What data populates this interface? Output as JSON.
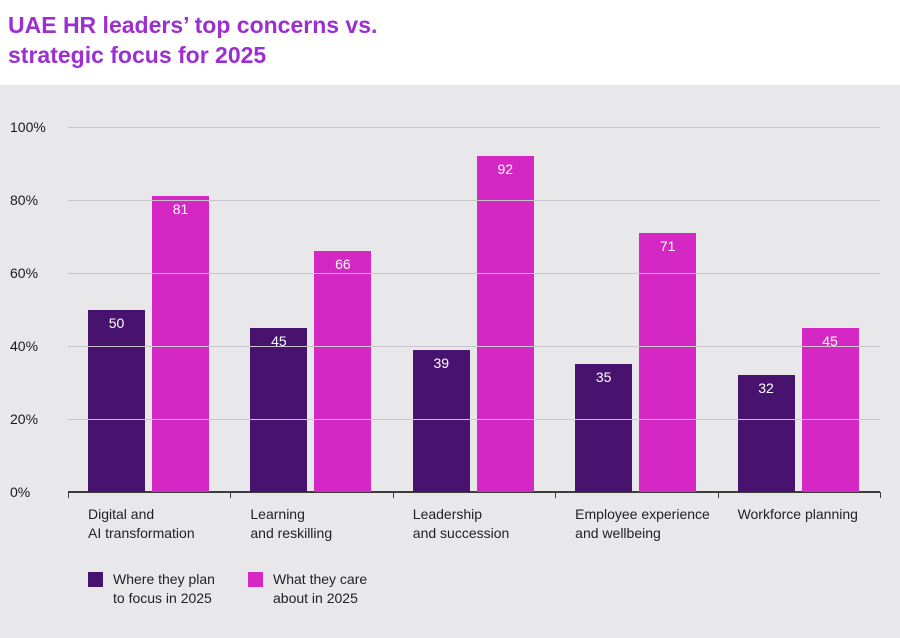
{
  "title": {
    "line1": "UAE HR leaders’ top concerns vs.",
    "line2": "strategic focus for 2025"
  },
  "colors": {
    "title": "#9B2FD0",
    "panel_bg": "#E8E7EA",
    "gridline": "#C7C5CB",
    "axis_line": "#3C3C3C",
    "series_focus": "#47136F",
    "series_care": "#D527C4",
    "bar_value_text": "#FFFFFF"
  },
  "chart_data": {
    "type": "bar",
    "title": "UAE HR leaders’ top concerns vs. strategic focus for 2025",
    "categories": [
      "Digital and AI transformation",
      "Learning and reskilling",
      "Leadership and succession",
      "Employee experience and wellbeing",
      "Workforce planning"
    ],
    "category_label_lines": [
      [
        "Digital and",
        "AI transformation"
      ],
      [
        "Learning",
        "and reskilling"
      ],
      [
        "Leadership",
        "and succession"
      ],
      [
        "Employee experience",
        "and wellbeing"
      ],
      [
        "Workforce planning"
      ]
    ],
    "series": [
      {
        "name": "Where they plan to focus in 2025",
        "legend_lines": [
          "Where they plan",
          "to focus in 2025"
        ],
        "color": "#47136F",
        "values": [
          50,
          45,
          39,
          35,
          32
        ]
      },
      {
        "name": "What they care about in 2025",
        "legend_lines": [
          "What they care",
          "about in 2025"
        ],
        "color": "#D527C4",
        "values": [
          81,
          66,
          92,
          71,
          45
        ]
      }
    ],
    "y_axis": {
      "ticks": [
        0,
        20,
        40,
        60,
        80,
        100
      ],
      "tick_labels": [
        "0%",
        "20%",
        "40%",
        "60%",
        "80%",
        "100%"
      ],
      "ylim": [
        0,
        100
      ]
    },
    "grid": true,
    "legend_position": "bottom"
  }
}
